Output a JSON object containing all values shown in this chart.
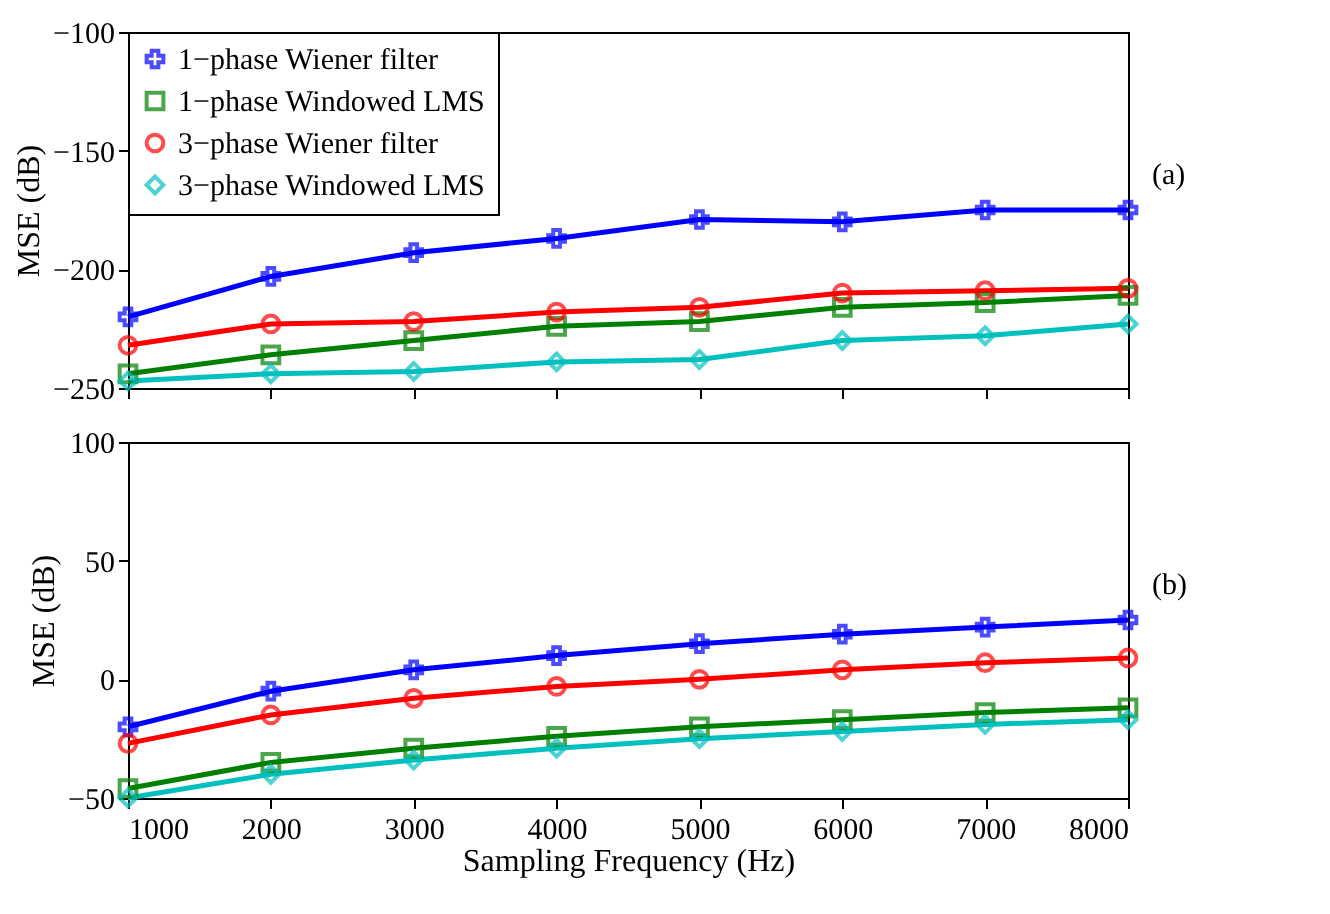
{
  "chart_data": [
    {
      "type": "line",
      "annotations": [
        "(a)"
      ],
      "ylabel": "MSE (dB)",
      "x": [
        1000,
        2000,
        3000,
        4000,
        5000,
        6000,
        7000,
        8000
      ],
      "xlim": [
        1000,
        8000
      ],
      "xticks": [
        1000,
        2000,
        3000,
        4000,
        5000,
        6000,
        7000,
        8000
      ],
      "ylim": [
        -250,
        -100
      ],
      "yticks": [
        -250,
        -200,
        -150,
        -100
      ],
      "tick_labels": "y",
      "legend": "top left",
      "grid": false,
      "series": [
        {
          "name": "1−phase Wiener filter",
          "color": "#0000ff",
          "marker": "cross",
          "values": [
            -220,
            -203,
            -193,
            -187,
            -179,
            -180,
            -175,
            -175
          ]
        },
        {
          "name": "1−phase Windowed LMS",
          "color": "#008000",
          "marker": "square",
          "values": [
            -244,
            -236,
            -230,
            -224,
            -222,
            -216,
            -214,
            -211
          ]
        },
        {
          "name": "3−phase Wiener filter",
          "color": "#ff0000",
          "marker": "circle",
          "values": [
            -232,
            -223,
            -222,
            -218,
            -216,
            -210,
            -209,
            -208
          ]
        },
        {
          "name": "3−phase Windowed LMS",
          "color": "#00bfbf",
          "marker": "diamond",
          "values": [
            -247,
            -244,
            -243,
            -239,
            -238,
            -230,
            -228,
            -223
          ]
        }
      ]
    },
    {
      "type": "line",
      "annotations": [
        "(b)"
      ],
      "xlabel": "Sampling Frequency (Hz)",
      "ylabel": "MSE (dB)",
      "x": [
        1000,
        2000,
        3000,
        4000,
        5000,
        6000,
        7000,
        8000
      ],
      "xlim": [
        1000,
        8000
      ],
      "xticks": [
        1000,
        2000,
        3000,
        4000,
        5000,
        6000,
        7000,
        8000
      ],
      "ylim": [
        -50,
        100
      ],
      "yticks": [
        -50,
        0,
        50,
        100
      ],
      "legend": "top left",
      "grid": false,
      "series": [
        {
          "name": "1−phase Wiener filter",
          "color": "#0000ff",
          "marker": "cross",
          "values": [
            -20,
            -5,
            4,
            10,
            15,
            19,
            22,
            25
          ]
        },
        {
          "name": "1−phase Windowed LMS",
          "color": "#008000",
          "marker": "square",
          "values": [
            -46,
            -35,
            -29,
            -24,
            -20,
            -17,
            -14,
            -12
          ]
        },
        {
          "name": "3−phase Wiener filter",
          "color": "#ff0000",
          "marker": "circle",
          "values": [
            -27,
            -15,
            -8,
            -3,
            0,
            4,
            7,
            9
          ]
        },
        {
          "name": "3−phase Windowed LMS",
          "color": "#00bfbf",
          "marker": "diamond",
          "values": [
            -50,
            -40,
            -34,
            -29,
            -25,
            -22,
            -19,
            -17
          ]
        }
      ]
    }
  ]
}
